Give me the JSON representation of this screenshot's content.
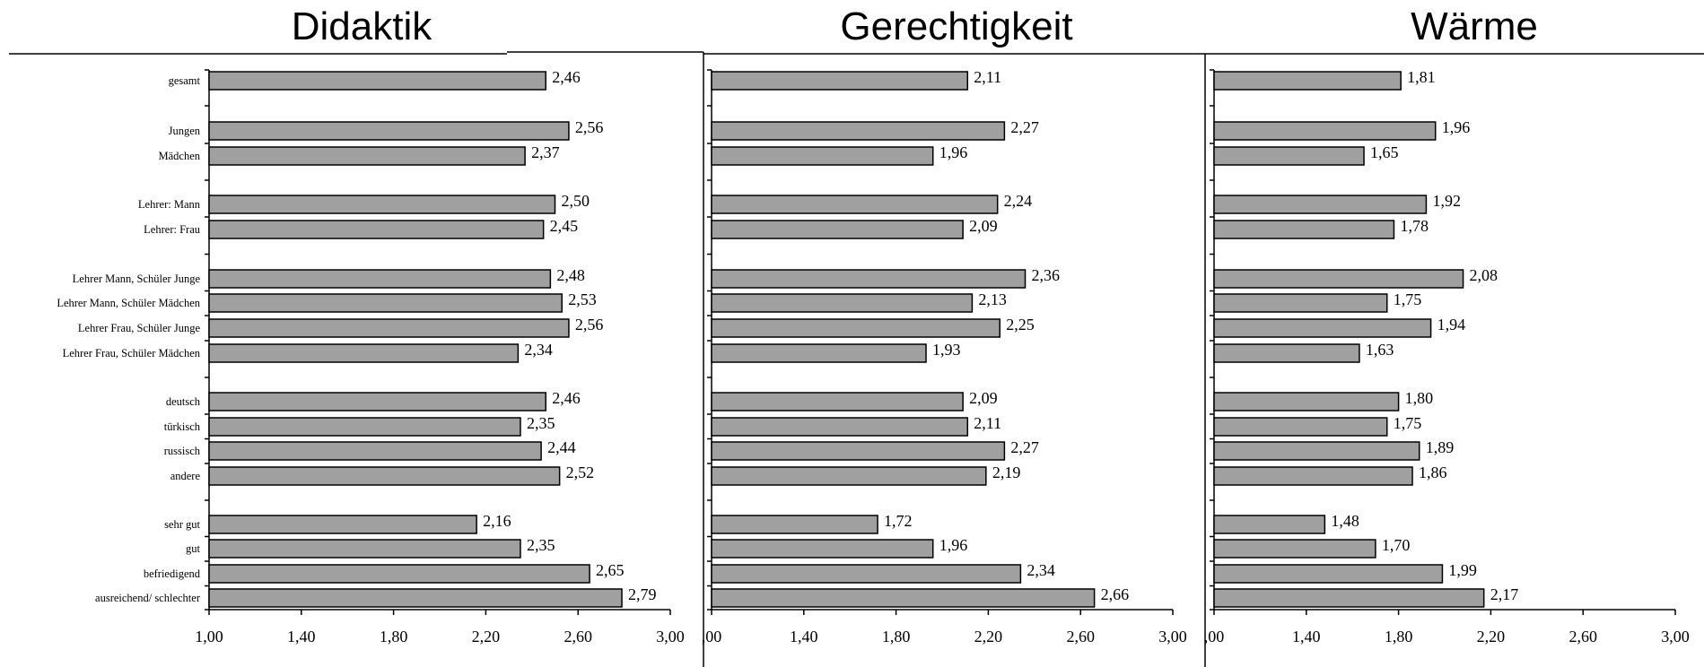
{
  "chart_data": [
    {
      "type": "bar",
      "orientation": "horizontal",
      "title": "Didaktik",
      "categories": [
        "gesamt",
        "Jungen",
        "Mädchen",
        "Lehrer: Mann",
        "Lehrer: Frau",
        "Lehrer Mann, Schüler Junge",
        "Lehrer Mann, Schüler Mädchen",
        "Lehrer Frau, Schüler Junge",
        "Lehrer Frau, Schüler Mädchen",
        "deutsch",
        "türkisch",
        "russisch",
        "andere",
        "sehr gut",
        "gut",
        "befriedigend",
        "ausreichend/ schlechter"
      ],
      "values": [
        2.46,
        2.56,
        2.37,
        2.5,
        2.45,
        2.48,
        2.53,
        2.56,
        2.34,
        2.46,
        2.35,
        2.44,
        2.52,
        2.16,
        2.35,
        2.65,
        2.79
      ],
      "value_labels": [
        "2,46",
        "2,56",
        "2,37",
        "2,50",
        "2,45",
        "2,48",
        "2,53",
        "2,56",
        "2,34",
        "2,46",
        "2,35",
        "2,44",
        "2,52",
        "2,16",
        "2,35",
        "2,65",
        "2,79"
      ],
      "xlim": [
        1.0,
        3.0
      ],
      "tick_labels": [
        "1,00",
        "1,40",
        "1,80",
        "2,20",
        "2,60",
        "3,00"
      ]
    },
    {
      "type": "bar",
      "orientation": "horizontal",
      "title": "Gerechtigkeit",
      "values": [
        2.11,
        2.27,
        1.96,
        2.24,
        2.09,
        2.36,
        2.13,
        2.25,
        1.93,
        2.09,
        2.11,
        2.27,
        2.19,
        1.72,
        1.96,
        2.34,
        2.66
      ],
      "value_labels": [
        "2,11",
        "2,27",
        "1,96",
        "2,24",
        "2,09",
        "2,36",
        "2,13",
        "2,25",
        "1,93",
        "2,09",
        "2,11",
        "2,27",
        "2,19",
        "1,72",
        "1,96",
        "2,34",
        "2,66"
      ],
      "xlim": [
        1.0,
        3.0
      ],
      "tick_labels": [
        ",00",
        "1,40",
        "1,80",
        "2,20",
        "2,60",
        "3,00"
      ]
    },
    {
      "type": "bar",
      "orientation": "horizontal",
      "title": "Wärme",
      "values": [
        1.81,
        1.96,
        1.65,
        1.92,
        1.78,
        2.08,
        1.75,
        1.94,
        1.63,
        1.8,
        1.75,
        1.89,
        1.86,
        1.48,
        1.7,
        1.99,
        2.17
      ],
      "value_labels": [
        "1,81",
        "1,96",
        "1,65",
        "1,92",
        "1,78",
        "2,08",
        "1,75",
        "1,94",
        "1,63",
        "1,80",
        "1,75",
        "1,89",
        "1,86",
        "1,48",
        "1,70",
        "1,99",
        "2,17"
      ],
      "xlim": [
        1.0,
        3.0
      ],
      "tick_labels": [
        ",00",
        "1,40",
        "1,80",
        "2,20",
        "2,60",
        "3,00"
      ]
    }
  ],
  "colors": {
    "bar_fill": "#a0a0a0",
    "bar_stroke": "#000000",
    "background": "#ffffff"
  }
}
